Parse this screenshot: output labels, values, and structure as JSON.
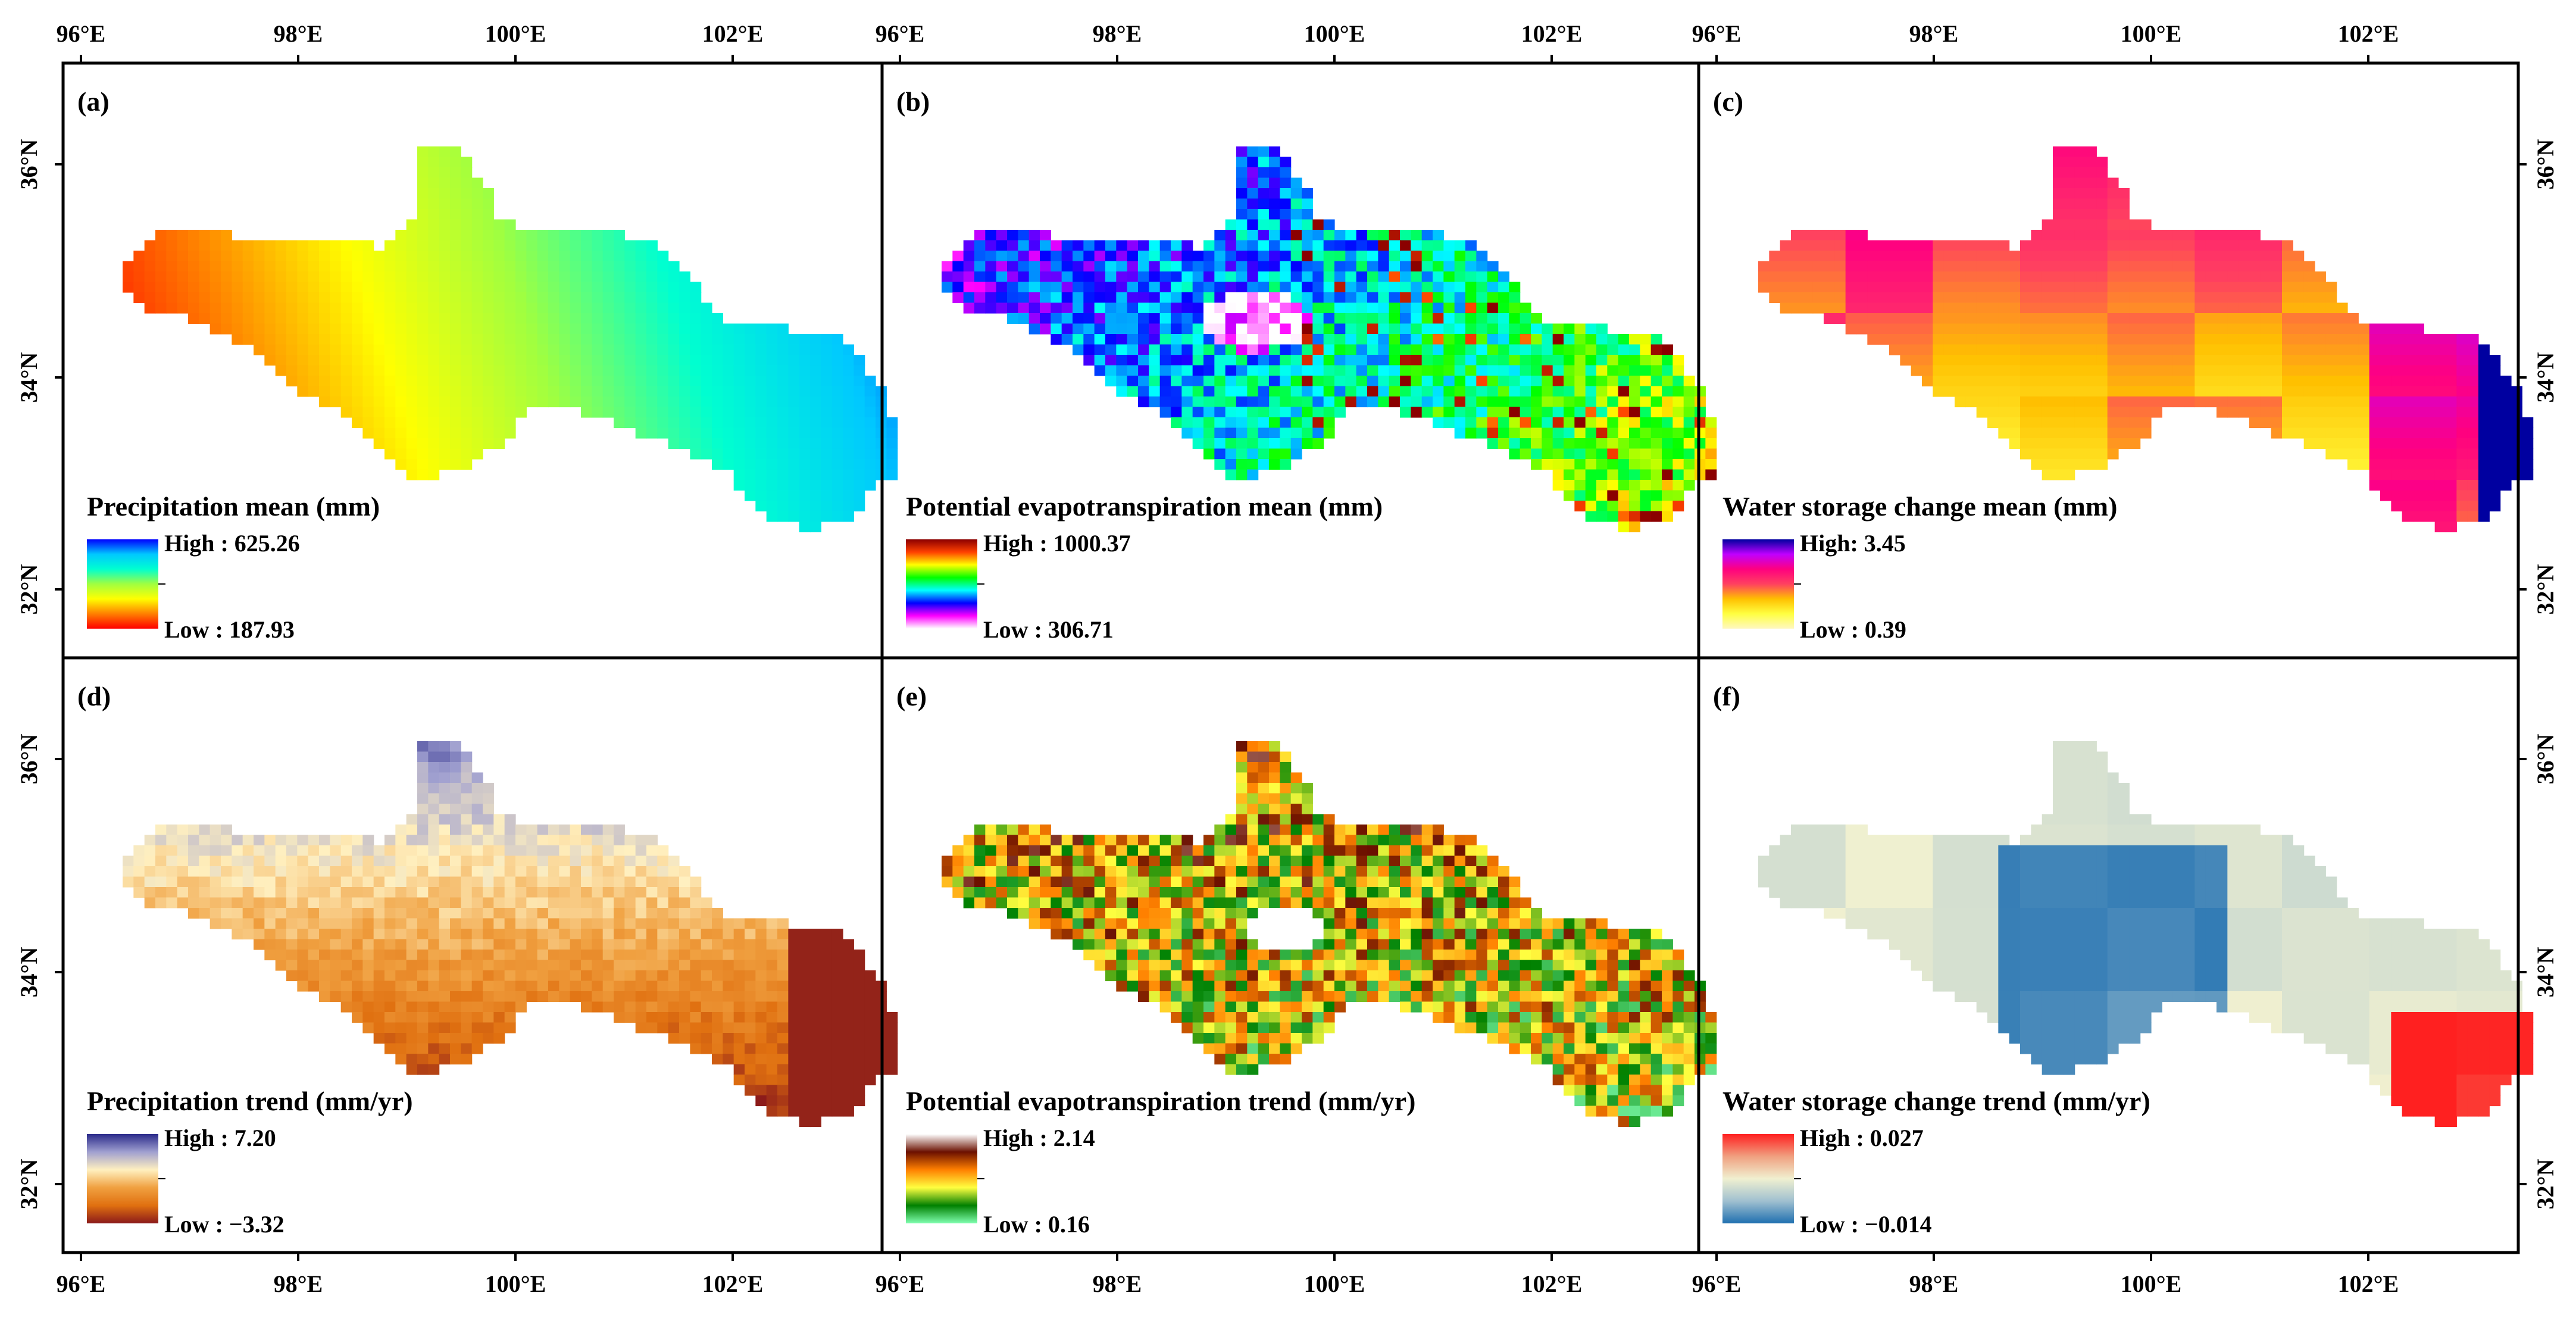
{
  "figure": {
    "longitude_labels": [
      "96°E",
      "98°E",
      "100°E",
      "102°E"
    ],
    "latitude_labels": [
      "36°N",
      "34°N",
      "32°N"
    ],
    "panels": [
      {
        "letter": "(a)",
        "title": "Precipitation mean (mm)",
        "legend_high": "High : 625.26",
        "legend_low": "Low : 187.93",
        "ramp": [
          "#0000ff",
          "#00c8ff",
          "#00ffd0",
          "#a0ff40",
          "#ffff00",
          "#ff8000",
          "#ff0000"
        ],
        "field": "precip_mean"
      },
      {
        "letter": "(b)",
        "title": "Potential evapotranspiration mean (mm)",
        "legend_high": "High : 1000.37",
        "legend_low": "Low : 306.71",
        "ramp": [
          "#8b0000",
          "#ff4000",
          "#ffff00",
          "#00ff00",
          "#00ffff",
          "#0000ff",
          "#ff00ff",
          "#ffffff"
        ],
        "field": "pet_mean"
      },
      {
        "letter": "(c)",
        "title": "Water storage change mean (mm)",
        "legend_high": "High: 3.45",
        "legend_low": "Low : 0.39",
        "ramp": [
          "#0000a0",
          "#c000ff",
          "#ff0080",
          "#ff4060",
          "#ffc000",
          "#ffff40",
          "#fff8c0"
        ],
        "field": "ws_mean"
      },
      {
        "letter": "(d)",
        "title": "Precipitation trend (mm/yr)",
        "legend_high": "High : 7.20",
        "legend_low": "Low : −3.32",
        "ramp": [
          "#2a2a8a",
          "#a0a0d0",
          "#fff0c0",
          "#f0a040",
          "#e07010",
          "#8b1a1a"
        ],
        "field": "precip_trend"
      },
      {
        "letter": "(e)",
        "title": "Potential evapotranspiration trend (mm/yr)",
        "legend_high": "High : 2.14",
        "legend_low": "Low : 0.16",
        "ramp": [
          "#ffffff",
          "#6b1000",
          "#ff8000",
          "#ffff40",
          "#008000",
          "#80ffb0"
        ],
        "field": "pet_trend"
      },
      {
        "letter": "(f)",
        "title": "Water storage change trend (mm/yr)",
        "legend_high": "High : 0.027",
        "legend_low": "Low : −0.014",
        "ramp": [
          "#ff2020",
          "#f0a080",
          "#f0f0d0",
          "#a0c0d0",
          "#2070b0"
        ],
        "field": "ws_trend"
      }
    ],
    "colors": {
      "frame": "#000000",
      "background": "#ffffff"
    }
  }
}
